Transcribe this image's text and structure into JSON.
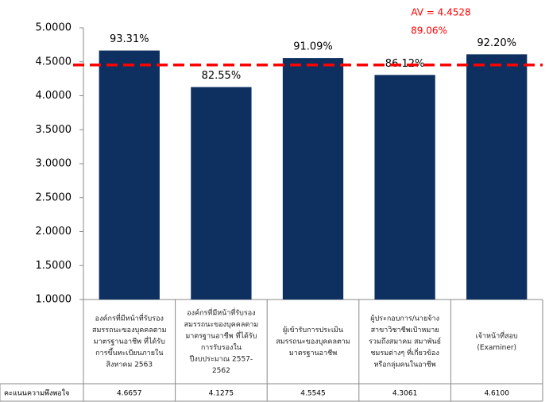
{
  "chart_data": {
    "type": "bar",
    "categories": [
      [
        "องค์กรที่มีหน้าที่รับรอง",
        "สมรรถนะของบุคคลตาม",
        "มาตรฐานอาชีพ ที่ได้รับ",
        "การขึ้นทะเบียนภายใน",
        "สิงหาคม 2563"
      ],
      [
        "องค์กรที่มีหน้าที่รับรอง",
        "สมรรถนะของบุคคลตาม",
        "มาตรฐานอาชีพ ที่ได้รับ",
        "การรับรองใน",
        "ปีงบประมาณ 2557-",
        "2562"
      ],
      [
        "ผู้เข้ารับการประเมิน",
        "สมรรถนะของบุคคลตาม",
        "มาตรฐานอาชีพ"
      ],
      [
        "ผู้ประกอบการ/นายจ้าง",
        "สาขาวิชาชีพเป้าหมาย",
        "รวมถึงสมาคม สมาพันธ์",
        "ชมรมต่างๆ ที่เกี่ยวข้อง",
        "หรือกลุ่มคนในอาชีพ"
      ],
      [
        "เจ้าหน้าที่สอบ",
        "(Examiner)"
      ]
    ],
    "values": [
      4.6657,
      4.1275,
      4.5545,
      4.3061,
      4.61
    ],
    "percent_labels": [
      "93.31%",
      "82.55%",
      "91.09%",
      "86.12%",
      "92.20%"
    ],
    "color": "#0e3060",
    "ylim": [
      1,
      5
    ],
    "yticks": [
      {
        "value": 1,
        "label": "1.0000"
      },
      {
        "value": 1.5,
        "label": "1.5000"
      },
      {
        "value": 2,
        "label": "2.0000"
      },
      {
        "value": 2.5,
        "label": "2.5000"
      },
      {
        "value": 3,
        "label": "3.0000"
      },
      {
        "value": 3.5,
        "label": "3.5000"
      },
      {
        "value": 4,
        "label": "4.0000"
      },
      {
        "value": 4.5,
        "label": "4.5000"
      },
      {
        "value": 5,
        "label": "5.0000"
      }
    ],
    "average": {
      "value": 4.4528,
      "label": "AV = 4.4528",
      "percent_label": "89.06%",
      "color": "#ff0000"
    },
    "table": {
      "row_label": "คะแนนความพึงพอใจ",
      "cells": [
        "4.6657",
        "4.1275",
        "4.5545",
        "4.3061",
        "4.6100"
      ]
    }
  }
}
